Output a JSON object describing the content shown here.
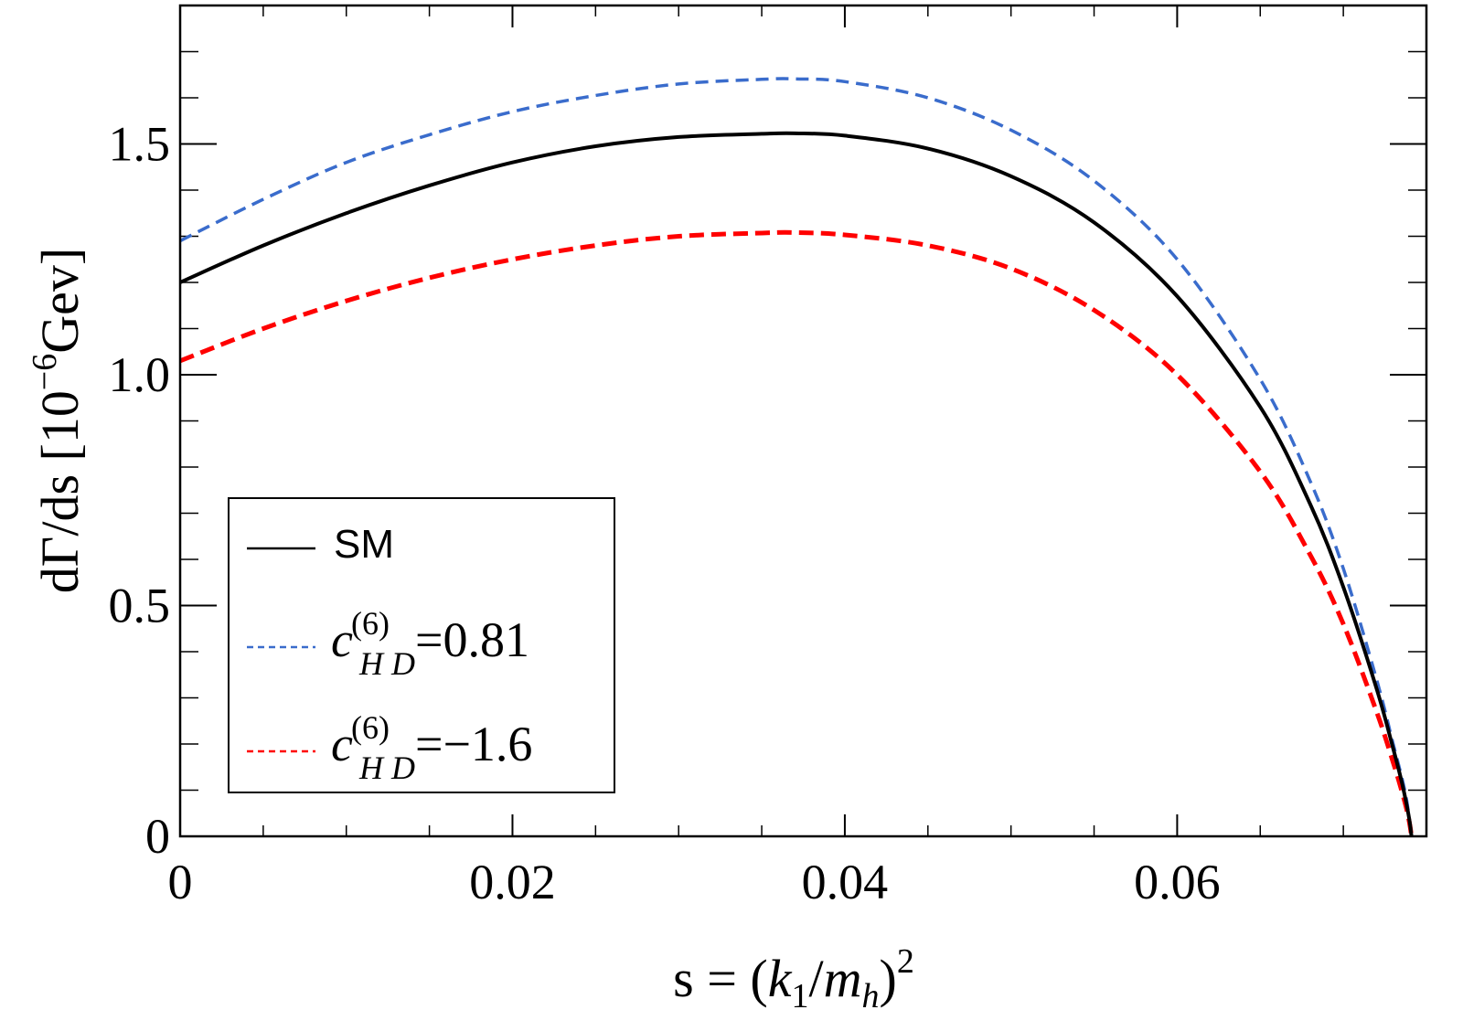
{
  "chart_data": {
    "type": "line",
    "title": "",
    "xlabel": "s = (k1/mh)^2",
    "xlabel_parts": {
      "lhs": "s = (",
      "k": "k",
      "k_sub": "1",
      "slash": "/",
      "m": "m",
      "m_sub": "h",
      "rhs": ")",
      "exp": "2"
    },
    "ylabel": "dΓ/ds [10^-6 Gev]",
    "ylabel_parts": {
      "main": "dΓ/ds [10",
      "exp": "−6",
      "unit": "Gev]"
    },
    "xlim": [
      0,
      0.075
    ],
    "ylim": [
      0,
      1.8
    ],
    "x_ticks": [
      {
        "value": 0,
        "label": "0"
      },
      {
        "value": 0.02,
        "label": "0.02"
      },
      {
        "value": 0.04,
        "label": "0.04"
      },
      {
        "value": 0.06,
        "label": "0.06"
      }
    ],
    "y_ticks": [
      {
        "value": 0,
        "label": "0"
      },
      {
        "value": 0.5,
        "label": "0.5"
      },
      {
        "value": 1.0,
        "label": "1.0"
      },
      {
        "value": 1.5,
        "label": "1.5"
      }
    ],
    "x_minor_step": 0.005,
    "y_minor_step": 0.1,
    "grid": false,
    "legend_position": "bottom-left",
    "series": [
      {
        "name": "SM",
        "legend_text": "SM",
        "color": "#000000",
        "dash": "solid",
        "x": [
          0,
          0.005,
          0.01,
          0.015,
          0.02,
          0.025,
          0.03,
          0.035,
          0.037,
          0.04,
          0.045,
          0.05,
          0.055,
          0.06,
          0.065,
          0.068,
          0.07,
          0.072,
          0.073,
          0.0735,
          0.0738,
          0.074,
          0.0741
        ],
        "y": [
          1.2,
          1.28,
          1.35,
          1.41,
          1.46,
          1.495,
          1.515,
          1.522,
          1.523,
          1.518,
          1.49,
          1.43,
          1.33,
          1.17,
          0.93,
          0.72,
          0.54,
          0.32,
          0.19,
          0.12,
          0.07,
          0.03,
          0.0
        ]
      },
      {
        "name": "cHD=0.81",
        "legend_coef": "c",
        "legend_sup": "(6)",
        "legend_sub": "H D",
        "legend_value": "=0.81",
        "color": "#3a6ccc",
        "dash": "dashed",
        "x": [
          0,
          0.005,
          0.01,
          0.015,
          0.02,
          0.025,
          0.03,
          0.035,
          0.037,
          0.04,
          0.045,
          0.05,
          0.055,
          0.06,
          0.065,
          0.068,
          0.07,
          0.072,
          0.073,
          0.0735,
          0.0738,
          0.074,
          0.0741
        ],
        "y": [
          1.29,
          1.38,
          1.46,
          1.52,
          1.57,
          1.605,
          1.63,
          1.64,
          1.641,
          1.635,
          1.6,
          1.53,
          1.42,
          1.25,
          0.99,
          0.77,
          0.58,
          0.34,
          0.2,
          0.13,
          0.08,
          0.03,
          0.0
        ]
      },
      {
        "name": "cHD=-1.6",
        "legend_coef": "c",
        "legend_sup": "(6)",
        "legend_sub": "H D",
        "legend_value": "=−1.6",
        "color": "#ff0000",
        "dash": "dashed",
        "x": [
          0,
          0.005,
          0.01,
          0.015,
          0.02,
          0.025,
          0.03,
          0.035,
          0.037,
          0.04,
          0.045,
          0.05,
          0.055,
          0.06,
          0.065,
          0.068,
          0.07,
          0.072,
          0.073,
          0.0735,
          0.0738,
          0.074,
          0.0741
        ],
        "y": [
          1.03,
          1.1,
          1.16,
          1.21,
          1.25,
          1.28,
          1.3,
          1.307,
          1.308,
          1.303,
          1.28,
          1.23,
          1.14,
          1.0,
          0.79,
          0.61,
          0.46,
          0.27,
          0.16,
          0.1,
          0.06,
          0.025,
          0.0
        ]
      }
    ]
  }
}
